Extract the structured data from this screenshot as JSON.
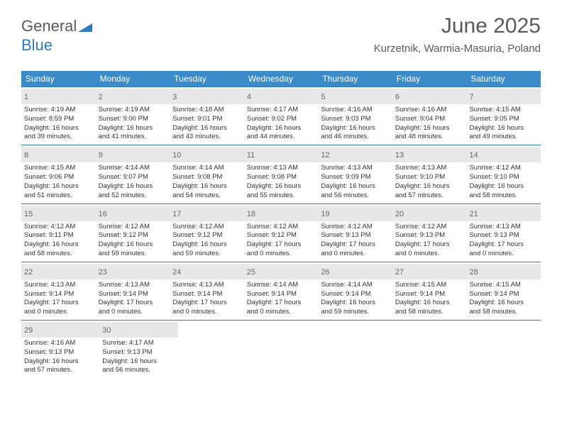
{
  "logo": {
    "text1": "General",
    "text2": "Blue"
  },
  "header": {
    "month_title": "June 2025",
    "location": "Kurzetnik, Warmia-Masuria, Poland"
  },
  "colors": {
    "header_bg": "#3b8bc8",
    "week_border": "#2f7bbf",
    "daynum_bg": "#e8e8e8",
    "text": "#333333",
    "muted": "#5a5a5a"
  },
  "weekdays": [
    "Sunday",
    "Monday",
    "Tuesday",
    "Wednesday",
    "Thursday",
    "Friday",
    "Saturday"
  ],
  "weeks": [
    [
      {
        "n": "1",
        "sr": "4:19 AM",
        "ss": "8:59 PM",
        "dl1": "16 hours",
        "dl2": "39 minutes."
      },
      {
        "n": "2",
        "sr": "4:19 AM",
        "ss": "9:00 PM",
        "dl1": "16 hours",
        "dl2": "41 minutes."
      },
      {
        "n": "3",
        "sr": "4:18 AM",
        "ss": "9:01 PM",
        "dl1": "16 hours",
        "dl2": "43 minutes."
      },
      {
        "n": "4",
        "sr": "4:17 AM",
        "ss": "9:02 PM",
        "dl1": "16 hours",
        "dl2": "44 minutes."
      },
      {
        "n": "5",
        "sr": "4:16 AM",
        "ss": "9:03 PM",
        "dl1": "16 hours",
        "dl2": "46 minutes."
      },
      {
        "n": "6",
        "sr": "4:16 AM",
        "ss": "9:04 PM",
        "dl1": "16 hours",
        "dl2": "48 minutes."
      },
      {
        "n": "7",
        "sr": "4:15 AM",
        "ss": "9:05 PM",
        "dl1": "16 hours",
        "dl2": "49 minutes."
      }
    ],
    [
      {
        "n": "8",
        "sr": "4:15 AM",
        "ss": "9:06 PM",
        "dl1": "16 hours",
        "dl2": "51 minutes."
      },
      {
        "n": "9",
        "sr": "4:14 AM",
        "ss": "9:07 PM",
        "dl1": "16 hours",
        "dl2": "52 minutes."
      },
      {
        "n": "10",
        "sr": "4:14 AM",
        "ss": "9:08 PM",
        "dl1": "16 hours",
        "dl2": "54 minutes."
      },
      {
        "n": "11",
        "sr": "4:13 AM",
        "ss": "9:08 PM",
        "dl1": "16 hours",
        "dl2": "55 minutes."
      },
      {
        "n": "12",
        "sr": "4:13 AM",
        "ss": "9:09 PM",
        "dl1": "16 hours",
        "dl2": "56 minutes."
      },
      {
        "n": "13",
        "sr": "4:13 AM",
        "ss": "9:10 PM",
        "dl1": "16 hours",
        "dl2": "57 minutes."
      },
      {
        "n": "14",
        "sr": "4:12 AM",
        "ss": "9:10 PM",
        "dl1": "16 hours",
        "dl2": "58 minutes."
      }
    ],
    [
      {
        "n": "15",
        "sr": "4:12 AM",
        "ss": "9:11 PM",
        "dl1": "16 hours",
        "dl2": "58 minutes."
      },
      {
        "n": "16",
        "sr": "4:12 AM",
        "ss": "9:12 PM",
        "dl1": "16 hours",
        "dl2": "59 minutes."
      },
      {
        "n": "17",
        "sr": "4:12 AM",
        "ss": "9:12 PM",
        "dl1": "16 hours",
        "dl2": "59 minutes."
      },
      {
        "n": "18",
        "sr": "4:12 AM",
        "ss": "9:12 PM",
        "dl1": "17 hours",
        "dl2": "0 minutes."
      },
      {
        "n": "19",
        "sr": "4:12 AM",
        "ss": "9:13 PM",
        "dl1": "17 hours",
        "dl2": "0 minutes."
      },
      {
        "n": "20",
        "sr": "4:12 AM",
        "ss": "9:13 PM",
        "dl1": "17 hours",
        "dl2": "0 minutes."
      },
      {
        "n": "21",
        "sr": "4:13 AM",
        "ss": "9:13 PM",
        "dl1": "17 hours",
        "dl2": "0 minutes."
      }
    ],
    [
      {
        "n": "22",
        "sr": "4:13 AM",
        "ss": "9:14 PM",
        "dl1": "17 hours",
        "dl2": "0 minutes."
      },
      {
        "n": "23",
        "sr": "4:13 AM",
        "ss": "9:14 PM",
        "dl1": "17 hours",
        "dl2": "0 minutes."
      },
      {
        "n": "24",
        "sr": "4:13 AM",
        "ss": "9:14 PM",
        "dl1": "17 hours",
        "dl2": "0 minutes."
      },
      {
        "n": "25",
        "sr": "4:14 AM",
        "ss": "9:14 PM",
        "dl1": "17 hours",
        "dl2": "0 minutes."
      },
      {
        "n": "26",
        "sr": "4:14 AM",
        "ss": "9:14 PM",
        "dl1": "16 hours",
        "dl2": "59 minutes."
      },
      {
        "n": "27",
        "sr": "4:15 AM",
        "ss": "9:14 PM",
        "dl1": "16 hours",
        "dl2": "58 minutes."
      },
      {
        "n": "28",
        "sr": "4:15 AM",
        "ss": "9:14 PM",
        "dl1": "16 hours",
        "dl2": "58 minutes."
      }
    ],
    [
      {
        "n": "29",
        "sr": "4:16 AM",
        "ss": "9:13 PM",
        "dl1": "16 hours",
        "dl2": "57 minutes."
      },
      {
        "n": "30",
        "sr": "4:17 AM",
        "ss": "9:13 PM",
        "dl1": "16 hours",
        "dl2": "56 minutes."
      },
      null,
      null,
      null,
      null,
      null
    ]
  ],
  "labels": {
    "sunrise": "Sunrise:",
    "sunset": "Sunset:",
    "daylight": "Daylight:",
    "and": "and"
  }
}
